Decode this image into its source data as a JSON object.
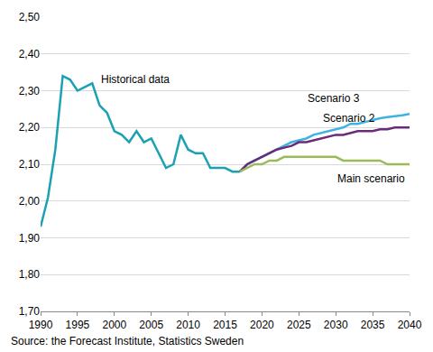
{
  "chart_data": {
    "type": "line",
    "x": [
      1990,
      1991,
      1992,
      1993,
      1994,
      1995,
      1996,
      1997,
      1998,
      1999,
      2000,
      2001,
      2002,
      2003,
      2004,
      2005,
      2006,
      2007,
      2008,
      2009,
      2010,
      2011,
      2012,
      2013,
      2014,
      2015,
      2016,
      2017,
      2018,
      2019,
      2020,
      2021,
      2022,
      2023,
      2024,
      2025,
      2026,
      2027,
      2028,
      2029,
      2030,
      2031,
      2032,
      2033,
      2034,
      2035,
      2036,
      2037,
      2038,
      2039,
      2040
    ],
    "series": [
      {
        "name": "Historical data",
        "color": "#1ba1b3",
        "values": [
          1.93,
          2.01,
          2.14,
          2.34,
          2.33,
          2.3,
          2.31,
          2.32,
          2.26,
          2.24,
          2.19,
          2.18,
          2.16,
          2.19,
          2.16,
          2.17,
          2.13,
          2.09,
          2.1,
          2.18,
          2.14,
          2.13,
          2.13,
          2.09,
          2.09,
          2.09,
          2.08,
          2.08,
          null,
          null,
          null,
          null,
          null,
          null,
          null,
          null,
          null,
          null,
          null,
          null,
          null,
          null,
          null,
          null,
          null,
          null,
          null,
          null,
          null,
          null,
          null
        ]
      },
      {
        "name": "Scenario 3",
        "color": "#3db3e3",
        "values": [
          null,
          null,
          null,
          null,
          null,
          null,
          null,
          null,
          null,
          null,
          null,
          null,
          null,
          null,
          null,
          null,
          null,
          null,
          null,
          null,
          null,
          null,
          null,
          null,
          null,
          null,
          null,
          2.08,
          2.1,
          2.11,
          2.12,
          2.13,
          2.14,
          2.15,
          2.16,
          2.165,
          2.17,
          2.18,
          2.185,
          2.19,
          2.195,
          2.2,
          2.21,
          2.21,
          2.215,
          2.22,
          2.225,
          2.228,
          2.23,
          2.233,
          2.237
        ]
      },
      {
        "name": "Scenario 2",
        "color": "#6b2a7a",
        "values": [
          null,
          null,
          null,
          null,
          null,
          null,
          null,
          null,
          null,
          null,
          null,
          null,
          null,
          null,
          null,
          null,
          null,
          null,
          null,
          null,
          null,
          null,
          null,
          null,
          null,
          null,
          null,
          2.08,
          2.1,
          2.11,
          2.12,
          2.13,
          2.14,
          2.145,
          2.15,
          2.16,
          2.16,
          2.165,
          2.17,
          2.175,
          2.18,
          2.18,
          2.185,
          2.19,
          2.19,
          2.19,
          2.195,
          2.195,
          2.2,
          2.2,
          2.2
        ]
      },
      {
        "name": "Main scenario",
        "color": "#9bbb59",
        "values": [
          null,
          null,
          null,
          null,
          null,
          null,
          null,
          null,
          null,
          null,
          null,
          null,
          null,
          null,
          null,
          null,
          null,
          null,
          null,
          null,
          null,
          null,
          null,
          null,
          null,
          null,
          null,
          2.08,
          2.09,
          2.1,
          2.1,
          2.11,
          2.11,
          2.12,
          2.12,
          2.12,
          2.12,
          2.12,
          2.12,
          2.12,
          2.12,
          2.11,
          2.11,
          2.11,
          2.11,
          2.11,
          2.11,
          2.1,
          2.1,
          2.1,
          2.1
        ]
      }
    ],
    "annotations": [
      {
        "text": "Historical data",
        "x": 1998,
        "y": 2.33
      },
      {
        "text": "Scenario 3",
        "x": 2026,
        "y": 2.28
      },
      {
        "text": "Scenario 2",
        "x": 2028,
        "y": 2.225
      },
      {
        "text": "Main scenario",
        "x": 2030,
        "y": 2.06
      }
    ],
    "source": "Source: the Forecast Institute, Statistics Sweden",
    "xlim": [
      1990,
      2040
    ],
    "xticks": [
      1990,
      1995,
      2000,
      2005,
      2010,
      2015,
      2020,
      2025,
      2030,
      2035,
      2040
    ],
    "ylim": [
      1.7,
      2.5
    ],
    "yticks": [
      {
        "value": 1.7,
        "label": "1,70"
      },
      {
        "value": 1.8,
        "label": "1,80"
      },
      {
        "value": 1.9,
        "label": "1,90"
      },
      {
        "value": 2.0,
        "label": "2,00"
      },
      {
        "value": 2.1,
        "label": "2,10"
      },
      {
        "value": 2.2,
        "label": "2,20"
      },
      {
        "value": 2.3,
        "label": "2,30"
      },
      {
        "value": 2.4,
        "label": "2,40"
      },
      {
        "value": 2.5,
        "label": "2,50"
      }
    ],
    "grid": true
  }
}
